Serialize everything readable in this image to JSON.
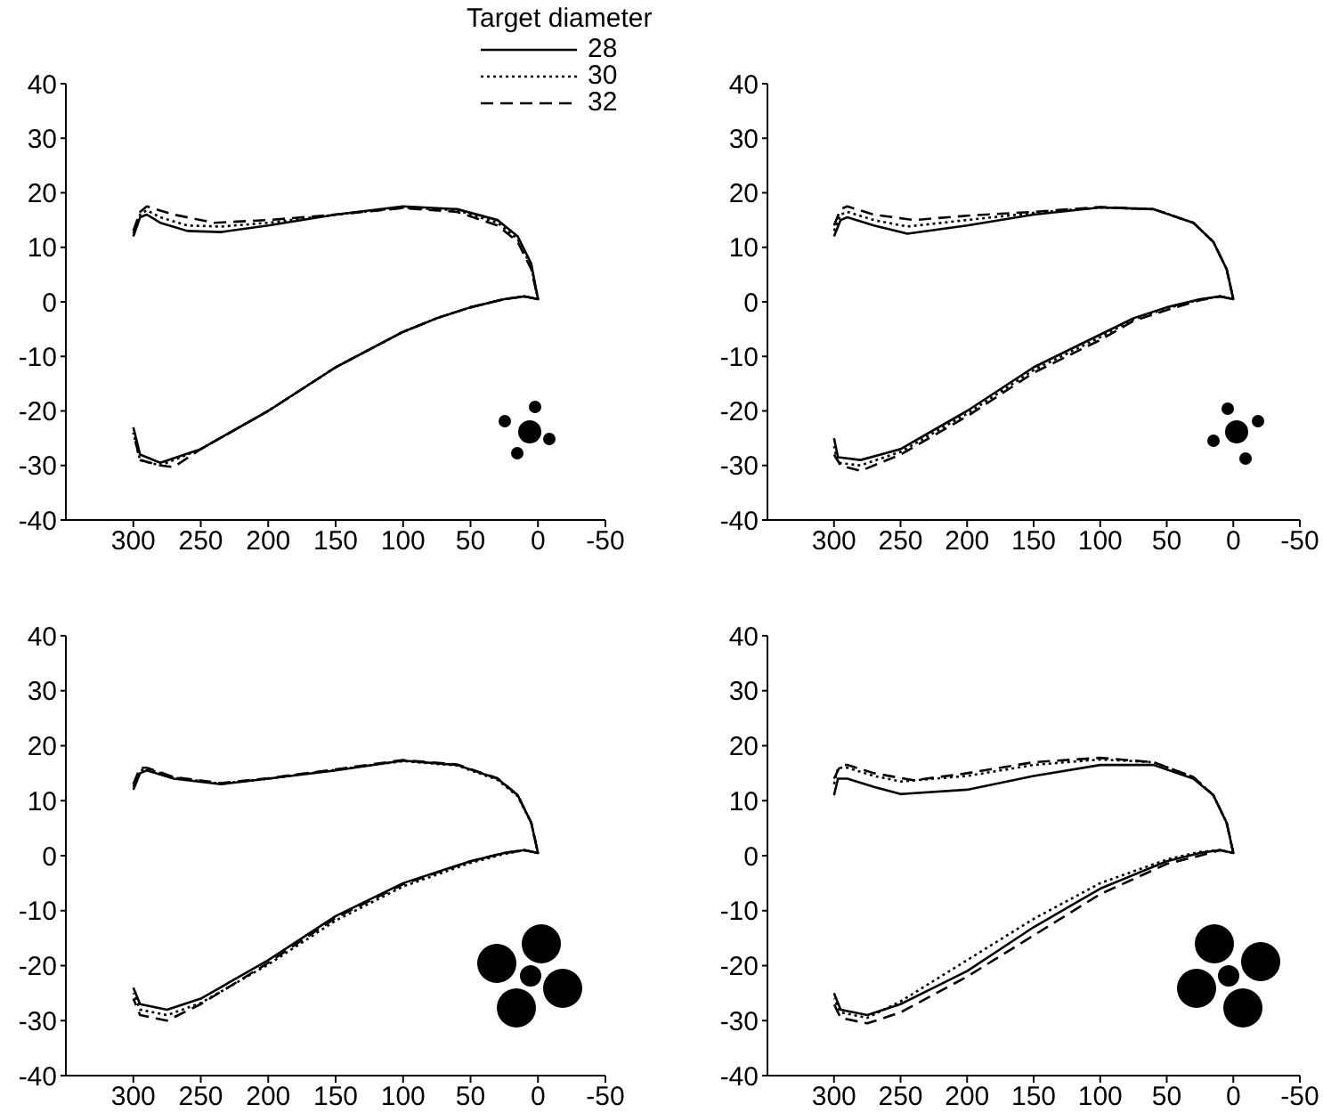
{
  "chart_data": [
    {
      "type": "line",
      "legend_title": "Target diameter",
      "legend": "top right",
      "xlim": [
        350,
        -50
      ],
      "xticks": [
        300,
        250,
        200,
        150,
        100,
        50,
        0,
        -50
      ],
      "ylim": [
        -40,
        40
      ],
      "yticks": [
        40,
        30,
        20,
        10,
        0,
        -10,
        -20,
        -30,
        -40
      ],
      "marker": "none",
      "series": [
        {
          "name": "28",
          "color": "#000000",
          "line_style": "solid",
          "x": [
            300,
            295,
            290,
            280,
            260,
            235,
            200,
            150,
            100,
            60,
            30,
            15,
            5,
            0,
            10,
            25,
            50,
            75,
            100,
            150,
            200,
            250,
            280,
            295,
            300
          ],
          "values": [
            12,
            15.5,
            16,
            14.5,
            13,
            12.8,
            14,
            16,
            17.5,
            17,
            15,
            12,
            7,
            0.5,
            1,
            0.5,
            -1,
            -3,
            -5.5,
            -12,
            -20,
            -27,
            -29.5,
            -28,
            -23
          ]
        },
        {
          "name": "30",
          "color": "#000000",
          "line_style": "dotted",
          "x": [
            300,
            295,
            290,
            280,
            260,
            235,
            200,
            150,
            100,
            60,
            30,
            15,
            5,
            0,
            10,
            25,
            50,
            75,
            100,
            150,
            200,
            250,
            280,
            295,
            300
          ],
          "values": [
            12.5,
            16,
            16.8,
            15.5,
            14,
            13.8,
            14.5,
            16,
            17.3,
            16.8,
            14.5,
            11.5,
            6.5,
            0.5,
            1,
            0.5,
            -1,
            -3,
            -5.5,
            -12,
            -20,
            -27,
            -30,
            -29,
            -24
          ]
        },
        {
          "name": "32",
          "color": "#000000",
          "line_style": "dashed",
          "x": [
            300,
            295,
            290,
            270,
            240,
            200,
            150,
            100,
            60,
            30,
            15,
            5,
            0,
            10,
            25,
            50,
            75,
            100,
            150,
            200,
            250,
            270,
            280,
            295,
            300
          ],
          "values": [
            13,
            16.5,
            17.5,
            16,
            14.5,
            15,
            16,
            17.2,
            16.5,
            14,
            11,
            6,
            0.5,
            1,
            0.5,
            -1,
            -3,
            -5.5,
            -12,
            -20,
            -27,
            -30.3,
            -30,
            -29,
            -24
          ]
        }
      ]
    },
    {
      "type": "line",
      "xlim": [
        350,
        -50
      ],
      "xticks": [
        300,
        250,
        200,
        150,
        100,
        50,
        0,
        -50
      ],
      "ylim": [
        -40,
        40
      ],
      "yticks": [
        40,
        30,
        20,
        10,
        0,
        -10,
        -20,
        -30,
        -40
      ],
      "marker": "none",
      "series": [
        {
          "color": "#000000",
          "line_style": "solid",
          "x": [
            300,
            295,
            290,
            270,
            245,
            200,
            150,
            100,
            60,
            30,
            15,
            5,
            0,
            10,
            25,
            50,
            75,
            100,
            150,
            200,
            250,
            280,
            297,
            300
          ],
          "values": [
            12,
            15,
            15.5,
            14,
            12.5,
            14,
            16,
            17.3,
            17,
            14.5,
            11,
            6,
            0.5,
            1,
            0.5,
            -1,
            -3,
            -6,
            -12,
            -20,
            -27,
            -29,
            -28.5,
            -25
          ]
        },
        {
          "color": "#000000",
          "line_style": "dotted",
          "x": [
            300,
            295,
            290,
            270,
            245,
            200,
            150,
            100,
            60,
            30,
            15,
            5,
            0,
            10,
            25,
            50,
            75,
            100,
            150,
            200,
            250,
            280,
            297,
            300
          ],
          "values": [
            13,
            16,
            16.5,
            15,
            13.8,
            15,
            16.3,
            17.3,
            17,
            14.5,
            11,
            6,
            0.5,
            1,
            0.4,
            -1.2,
            -3.2,
            -6.5,
            -12.5,
            -20.5,
            -27.5,
            -30,
            -29.5,
            -26.5
          ]
        },
        {
          "color": "#000000",
          "line_style": "dashed",
          "x": [
            300,
            295,
            290,
            270,
            240,
            200,
            150,
            100,
            60,
            30,
            15,
            5,
            0,
            10,
            25,
            50,
            75,
            100,
            150,
            200,
            250,
            280,
            295,
            300
          ],
          "values": [
            14,
            17,
            17.5,
            16,
            15,
            15.8,
            16.5,
            17.4,
            17,
            14.5,
            11,
            6,
            0.5,
            1,
            0.3,
            -1.5,
            -3.5,
            -7,
            -13,
            -21,
            -28,
            -31,
            -30,
            -28
          ]
        }
      ]
    },
    {
      "type": "line",
      "xlim": [
        350,
        -50
      ],
      "xticks": [
        300,
        250,
        200,
        150,
        100,
        50,
        0,
        -50
      ],
      "ylim": [
        -40,
        40
      ],
      "yticks": [
        40,
        30,
        20,
        10,
        0,
        -10,
        -20,
        -30,
        -40
      ],
      "marker": "none",
      "series": [
        {
          "color": "#000000",
          "line_style": "solid",
          "x": [
            300,
            295,
            290,
            270,
            235,
            200,
            150,
            100,
            60,
            30,
            15,
            5,
            0,
            10,
            25,
            50,
            100,
            150,
            200,
            250,
            275,
            295,
            300
          ],
          "values": [
            12,
            15,
            15.5,
            14,
            13,
            14,
            15.5,
            17.3,
            16.5,
            14,
            11,
            6,
            0.5,
            1,
            0.5,
            -1,
            -5,
            -11,
            -19,
            -26,
            -28,
            -27,
            -24
          ]
        },
        {
          "color": "#000000",
          "line_style": "dotted",
          "x": [
            300,
            295,
            290,
            270,
            235,
            200,
            150,
            100,
            60,
            30,
            15,
            5,
            0,
            10,
            25,
            50,
            100,
            150,
            200,
            250,
            275,
            295,
            300
          ],
          "values": [
            12.5,
            15.5,
            15.8,
            14.2,
            13.1,
            14,
            15.6,
            17.2,
            16.4,
            13.8,
            10.8,
            6,
            0.5,
            1,
            0.3,
            -1.3,
            -5.6,
            -11.8,
            -19.8,
            -26.8,
            -29,
            -28,
            -25
          ]
        },
        {
          "color": "#000000",
          "line_style": "dashed",
          "x": [
            300,
            295,
            290,
            270,
            235,
            200,
            150,
            100,
            60,
            30,
            15,
            5,
            0,
            10,
            25,
            50,
            100,
            150,
            200,
            250,
            275,
            295,
            300
          ],
          "values": [
            13,
            16,
            16,
            14.3,
            13.2,
            14.1,
            15.7,
            17.4,
            16.6,
            14.1,
            11,
            6,
            0.5,
            1,
            0.5,
            -1,
            -5.2,
            -11.3,
            -19.5,
            -27,
            -30,
            -29,
            -26
          ]
        }
      ]
    },
    {
      "type": "line",
      "xlim": [
        350,
        -50
      ],
      "xticks": [
        300,
        250,
        200,
        150,
        100,
        50,
        0,
        -50
      ],
      "ylim": [
        -40,
        40
      ],
      "yticks": [
        40,
        30,
        20,
        10,
        0,
        -10,
        -20,
        -30,
        -40
      ],
      "marker": "none",
      "series": [
        {
          "color": "#000000",
          "line_style": "solid",
          "x": [
            300,
            297,
            290,
            270,
            250,
            200,
            150,
            100,
            60,
            30,
            15,
            5,
            0,
            10,
            25,
            50,
            100,
            150,
            200,
            250,
            275,
            295,
            300
          ],
          "values": [
            11,
            14,
            14,
            12.5,
            11.2,
            12,
            14.5,
            16.5,
            16.5,
            14,
            11,
            6,
            0.5,
            1,
            0.5,
            -1,
            -6,
            -13,
            -21,
            -27,
            -29,
            -28,
            -25
          ]
        },
        {
          "color": "#000000",
          "line_style": "dotted",
          "x": [
            300,
            297,
            290,
            270,
            250,
            200,
            150,
            100,
            60,
            30,
            15,
            5,
            0,
            10,
            25,
            50,
            100,
            150,
            200,
            250,
            275,
            295,
            300
          ],
          "values": [
            13,
            16,
            16,
            14.5,
            13.5,
            14.5,
            16.5,
            17.5,
            17,
            14.3,
            11,
            6,
            0.5,
            1,
            0.7,
            -0.7,
            -5,
            -11.5,
            -19,
            -26.5,
            -29.5,
            -28.5,
            -26
          ]
        },
        {
          "color": "#000000",
          "line_style": "dashed",
          "x": [
            300,
            295,
            290,
            270,
            240,
            200,
            150,
            100,
            60,
            30,
            15,
            5,
            0,
            10,
            25,
            50,
            100,
            150,
            200,
            250,
            275,
            295,
            300
          ],
          "values": [
            14,
            16.5,
            16.5,
            15,
            13.7,
            15,
            17,
            17.8,
            17,
            14.3,
            11,
            6,
            0.5,
            1,
            0,
            -1.5,
            -7,
            -14.5,
            -22,
            -28.5,
            -30.5,
            -29.5,
            -27
          ]
        }
      ]
    }
  ]
}
